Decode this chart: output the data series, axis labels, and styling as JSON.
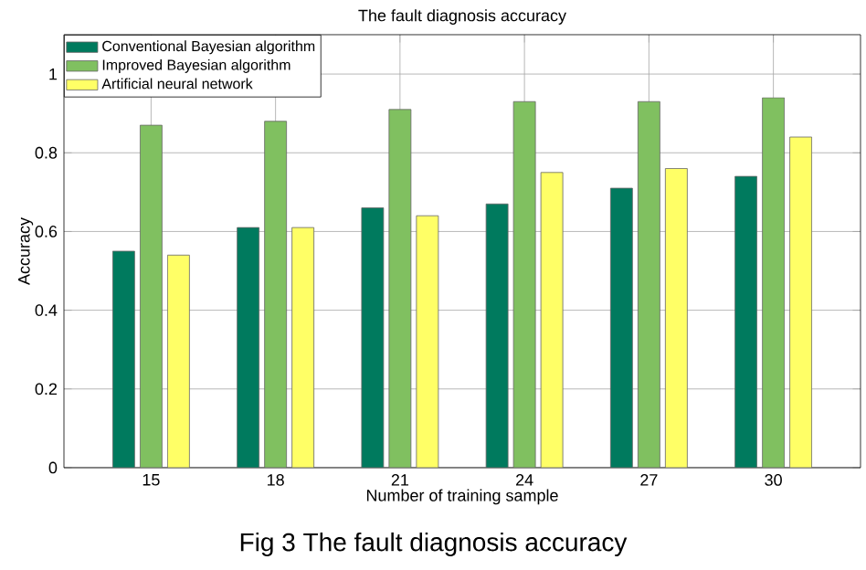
{
  "chart_data": {
    "type": "bar",
    "title": "The fault diagnosis accuracy",
    "xlabel": "Number of training sample",
    "ylabel": "Accuracy",
    "categories": [
      "15",
      "18",
      "21",
      "24",
      "27",
      "30"
    ],
    "series": [
      {
        "name": "Conventional Bayesian algorithm",
        "color": "#007a5e",
        "values": [
          0.55,
          0.61,
          0.66,
          0.67,
          0.71,
          0.74
        ]
      },
      {
        "name": "Improved Bayesian algorithm",
        "color": "#80c060",
        "values": [
          0.87,
          0.88,
          0.91,
          0.93,
          0.93,
          0.94
        ]
      },
      {
        "name": "Artificial neural network",
        "color": "#ffff66",
        "values": [
          0.54,
          0.61,
          0.64,
          0.75,
          0.76,
          0.84
        ]
      }
    ],
    "ylim": [
      0,
      1.1
    ],
    "yticks": [
      0,
      0.2,
      0.4,
      0.6,
      0.8,
      1
    ],
    "grid": true,
    "legend": "top left",
    "annotations": [
      "Fig 3 The fault diagnosis accuracy"
    ]
  }
}
